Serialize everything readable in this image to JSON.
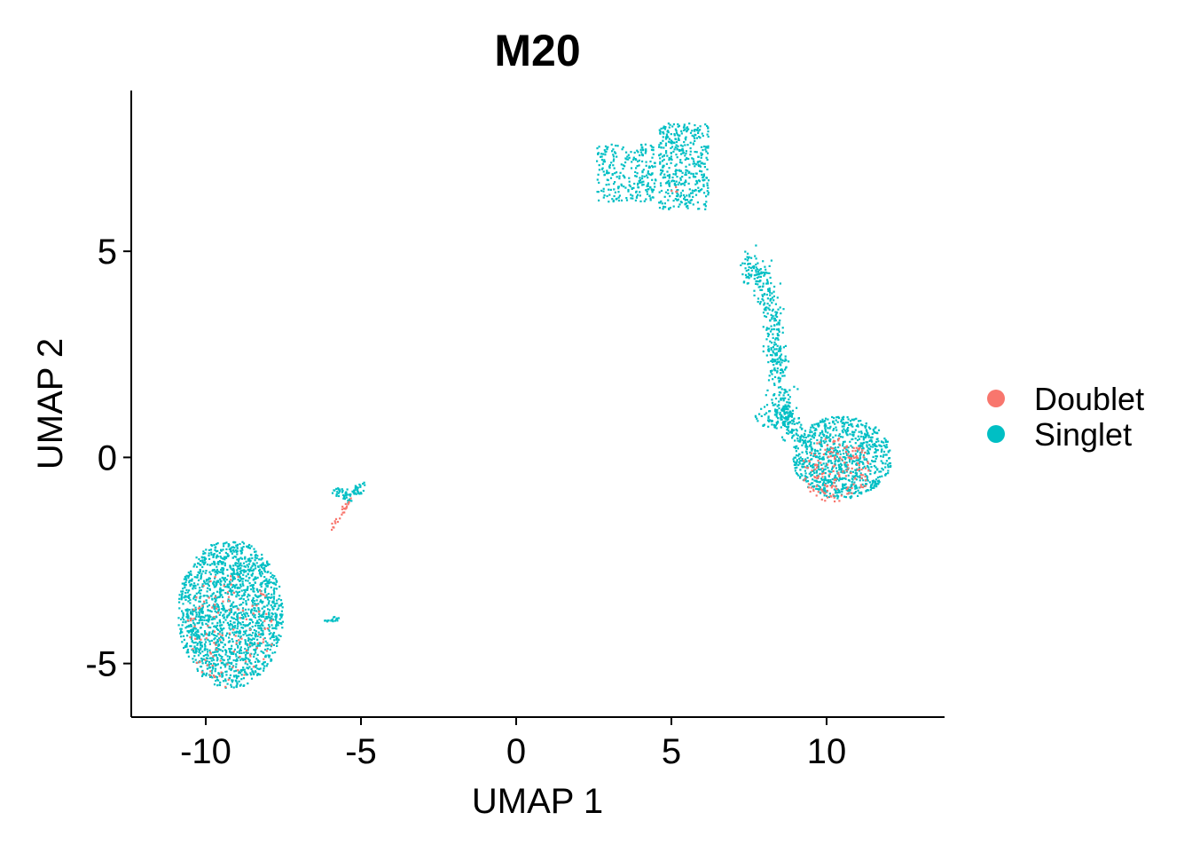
{
  "chart_data": {
    "type": "scatter",
    "title": "M20",
    "xlabel": "UMAP 1",
    "ylabel": "UMAP 2",
    "xlim": [
      -12.4,
      13.8
    ],
    "ylim": [
      -6.3,
      8.9
    ],
    "x_ticks": [
      -10,
      -5,
      0,
      5,
      10
    ],
    "x_tick_labels": [
      "-10",
      "-5",
      "0",
      "5",
      "10"
    ],
    "y_ticks": [
      -5,
      0,
      5
    ],
    "y_tick_labels": [
      "-5",
      "0",
      "5"
    ],
    "grid": false,
    "legend_position": "right",
    "legend": [
      {
        "name": "Doublet",
        "color": "#F8766D"
      },
      {
        "name": "Singlet",
        "color": "#00BFC4"
      }
    ],
    "series": [
      {
        "name": "Singlet",
        "color": "#00BFC4",
        "clusters": [
          {
            "shape": "ellipse",
            "cx": -9.2,
            "cy": -3.8,
            "rx": 1.7,
            "ry": 1.8,
            "n": 1700
          },
          {
            "shape": "box",
            "x0": 2.6,
            "x1": 4.5,
            "y0": 6.2,
            "y1": 7.6,
            "n": 260
          },
          {
            "shape": "box",
            "x0": 4.6,
            "x1": 6.2,
            "y0": 6.0,
            "y1": 8.1,
            "n": 420
          },
          {
            "shape": "path",
            "points": [
              [
                7.4,
                4.7
              ],
              [
                8.0,
                4.3
              ],
              [
                8.3,
                3.2
              ],
              [
                8.4,
                2.2
              ],
              [
                8.6,
                1.2
              ],
              [
                9.0,
                0.5
              ]
            ],
            "width": 0.35,
            "n": 480
          },
          {
            "shape": "ellipse",
            "cx": 10.5,
            "cy": 0.0,
            "rx": 1.6,
            "ry": 1.0,
            "n": 900
          },
          {
            "shape": "ellipse",
            "cx": 8.3,
            "cy": 1.0,
            "rx": 0.6,
            "ry": 0.3,
            "n": 60
          },
          {
            "shape": "path",
            "points": [
              [
                -5.8,
                -0.8
              ],
              [
                -5.4,
                -1.0
              ],
              [
                -4.8,
                -0.6
              ]
            ],
            "width": 0.15,
            "n": 70
          },
          {
            "shape": "path",
            "points": [
              [
                -6.2,
                -4.0
              ],
              [
                -5.7,
                -3.9
              ]
            ],
            "width": 0.05,
            "n": 18
          }
        ]
      },
      {
        "name": "Doublet",
        "color": "#F8766D",
        "clusters": [
          {
            "shape": "ellipse",
            "cx": 10.3,
            "cy": -0.3,
            "rx": 1.1,
            "ry": 0.8,
            "n": 160
          },
          {
            "shape": "ellipse",
            "cx": -9.2,
            "cy": -4.2,
            "rx": 1.4,
            "ry": 1.4,
            "n": 110
          },
          {
            "shape": "path",
            "points": [
              [
                -6.0,
                -1.8
              ],
              [
                -5.6,
                -1.3
              ],
              [
                -5.3,
                -1.0
              ]
            ],
            "width": 0.1,
            "n": 25
          },
          {
            "shape": "ellipse",
            "cx": 5.0,
            "cy": 6.5,
            "rx": 0.2,
            "ry": 0.2,
            "n": 4
          }
        ]
      }
    ]
  }
}
